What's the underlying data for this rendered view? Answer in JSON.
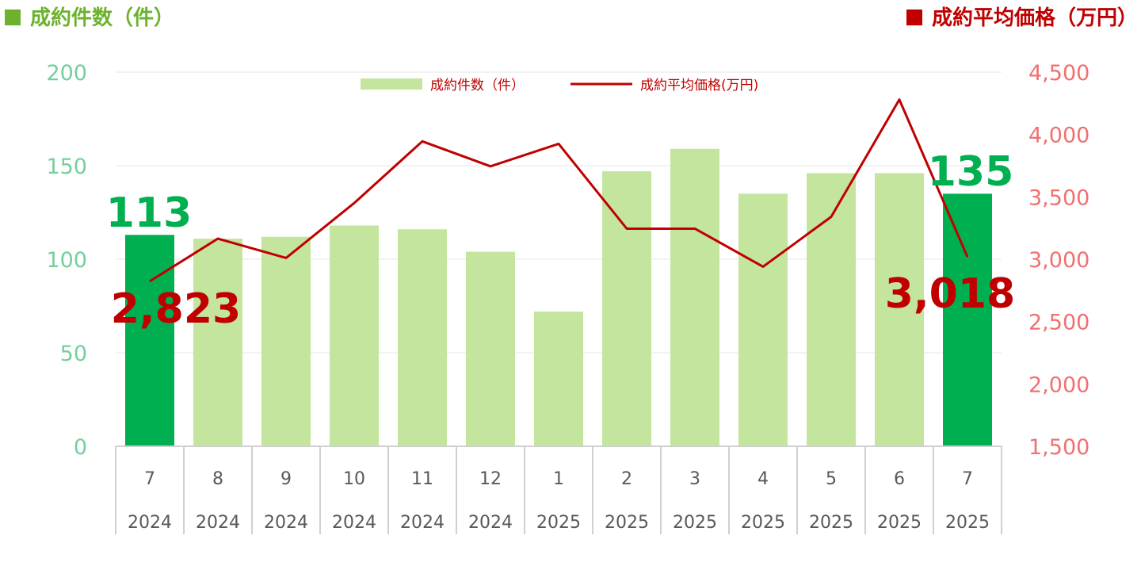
{
  "header": {
    "left_title": "成約件数（件）",
    "right_title": "成約平均価格（万円）",
    "left_color": "#6cb22e",
    "right_color": "#c00000"
  },
  "legend": {
    "bar_label": "成約件数（件）",
    "line_label": "成約平均価格(万円)"
  },
  "chart_data": {
    "type": "bar",
    "categories": [
      "7",
      "8",
      "9",
      "10",
      "11",
      "12",
      "1",
      "2",
      "3",
      "4",
      "5",
      "6",
      "7"
    ],
    "years": [
      "2024",
      "2024",
      "2024",
      "2024",
      "2024",
      "2024",
      "2025",
      "2025",
      "2025",
      "2025",
      "2025",
      "2025",
      "2025"
    ],
    "series": [
      {
        "name": "成約件数（件）",
        "type": "bar",
        "axis": "left",
        "values": [
          113,
          111,
          112,
          118,
          116,
          104,
          72,
          147,
          159,
          135,
          146,
          146,
          135
        ],
        "highlight_indices": [
          0,
          12
        ]
      },
      {
        "name": "成約平均価格(万円)",
        "type": "line",
        "axis": "right",
        "values": [
          2823,
          3165,
          3010,
          3450,
          3945,
          3745,
          3925,
          3245,
          3245,
          2940,
          3340,
          4280,
          3018
        ]
      }
    ],
    "y_left": {
      "min": 0,
      "max": 200,
      "ticks": [
        "0",
        "50",
        "100",
        "150",
        "200"
      ]
    },
    "y_right": {
      "min": 1500,
      "max": 4500,
      "ticks": [
        "1,500",
        "2,000",
        "2,500",
        "3,000",
        "3,500",
        "4,000",
        "4,500"
      ]
    },
    "data_labels": {
      "bar_first": "113",
      "bar_last": "135",
      "line_first": "2,823",
      "line_last": "3,018"
    },
    "colors": {
      "bar": "#c3e59e",
      "bar_highlight": "#00b050",
      "line": "#c00000",
      "label_bar": "#00b050",
      "label_line": "#c00000",
      "left_ticks": "#74cf9b",
      "right_ticks": "#f07070",
      "grid": "#e6e6e6"
    },
    "grid": true,
    "legend_position": "top-center"
  }
}
